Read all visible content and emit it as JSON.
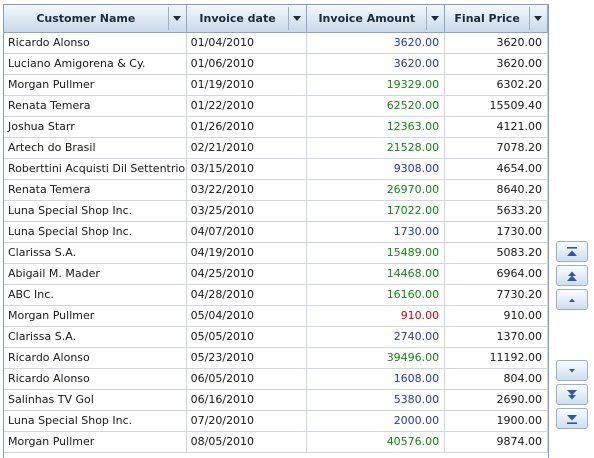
{
  "columns": [
    {
      "label": "Customer Name"
    },
    {
      "label": "Invoice date"
    },
    {
      "label": "Invoice Amount"
    },
    {
      "label": "Final Price"
    }
  ],
  "rows": [
    {
      "customer": "Ricardo Alonso",
      "date": "01/04/2010",
      "amount": "3620.00",
      "amount_color": "blue",
      "final": "3620.00"
    },
    {
      "customer": "Luciano Amigorena & Cy.",
      "date": "01/06/2010",
      "amount": "3620.00",
      "amount_color": "blue",
      "final": "3620.00"
    },
    {
      "customer": "Morgan Pullmer",
      "date": "01/19/2010",
      "amount": "19329.00",
      "amount_color": "green",
      "final": "6302.20"
    },
    {
      "customer": "Renata Temera",
      "date": "01/22/2010",
      "amount": "62520.00",
      "amount_color": "green",
      "final": "15509.40"
    },
    {
      "customer": "Joshua Starr",
      "date": "01/26/2010",
      "amount": "12363.00",
      "amount_color": "green",
      "final": "4121.00"
    },
    {
      "customer": "Artech do Brasil",
      "date": "02/21/2010",
      "amount": "21528.00",
      "amount_color": "green",
      "final": "7078.20"
    },
    {
      "customer": "Roberttini Acquisti Dil Settentrionale",
      "date": "03/15/2010",
      "amount": "9308.00",
      "amount_color": "blue",
      "final": "4654.00"
    },
    {
      "customer": "Renata Temera",
      "date": "03/22/2010",
      "amount": "26970.00",
      "amount_color": "green",
      "final": "8640.20"
    },
    {
      "customer": "Luna Special Shop Inc.",
      "date": "03/25/2010",
      "amount": "17022.00",
      "amount_color": "green",
      "final": "5633.20"
    },
    {
      "customer": "Luna Special Shop Inc.",
      "date": "04/07/2010",
      "amount": "1730.00",
      "amount_color": "blue",
      "final": "1730.00"
    },
    {
      "customer": "Clarissa S.A.",
      "date": "04/19/2010",
      "amount": "15489.00",
      "amount_color": "green",
      "final": "5083.20"
    },
    {
      "customer": "Abigail M. Mader",
      "date": "04/25/2010",
      "amount": "14468.00",
      "amount_color": "green",
      "final": "6964.00"
    },
    {
      "customer": "ABC Inc.",
      "date": "04/28/2010",
      "amount": "16160.00",
      "amount_color": "green",
      "final": "7730.20"
    },
    {
      "customer": "Morgan Pullmer",
      "date": "05/04/2010",
      "amount": "910.00",
      "amount_color": "red",
      "final": "910.00"
    },
    {
      "customer": "Clarissa S.A.",
      "date": "05/05/2010",
      "amount": "2740.00",
      "amount_color": "blue",
      "final": "1370.00"
    },
    {
      "customer": "Ricardo Alonso",
      "date": "05/23/2010",
      "amount": "39496.00",
      "amount_color": "green",
      "final": "11192.00"
    },
    {
      "customer": "Ricardo Alonso",
      "date": "06/05/2010",
      "amount": "1608.00",
      "amount_color": "blue",
      "final": "804.00"
    },
    {
      "customer": "Salinhas TV Gol",
      "date": "06/16/2010",
      "amount": "5380.00",
      "amount_color": "blue",
      "final": "2690.00"
    },
    {
      "customer": "Luna Special Shop Inc.",
      "date": "07/20/2010",
      "amount": "2000.00",
      "amount_color": "blue",
      "final": "1900.00"
    },
    {
      "customer": "Morgan Pullmer",
      "date": "08/05/2010",
      "amount": "40576.00",
      "amount_color": "green",
      "final": "9874.00"
    }
  ],
  "colors": {
    "green": "#138a13",
    "blue": "#2a35c8",
    "red": "#e00000",
    "header_border": "#8fa5bd"
  },
  "nav_buttons": [
    {
      "icon": "move-top-icon"
    },
    {
      "icon": "move-up-fast-icon"
    },
    {
      "icon": "move-up-icon"
    },
    {
      "icon": "move-down-icon"
    },
    {
      "icon": "move-down-fast-icon"
    },
    {
      "icon": "move-bottom-icon"
    }
  ]
}
